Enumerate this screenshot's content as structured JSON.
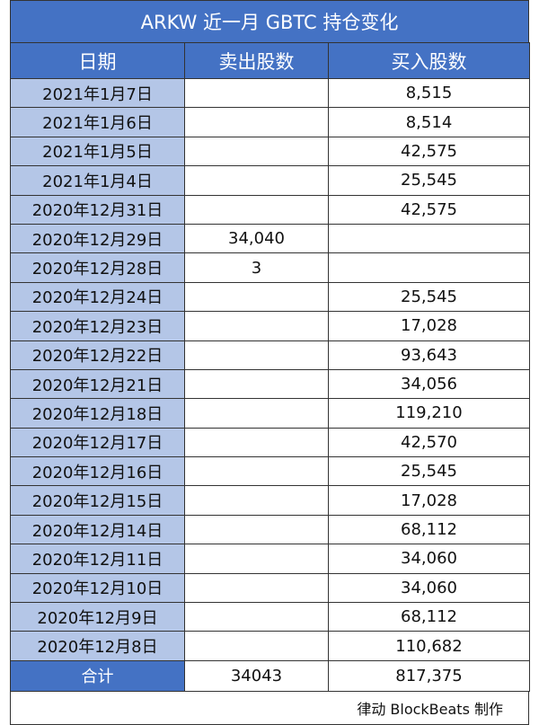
{
  "title": "ARKW 近一月 GBTC 持仓变化",
  "table": {
    "header": [
      "日期",
      "卖出股数",
      "买入股数"
    ],
    "rows": [
      [
        "2021年1月7日",
        null,
        "8,515"
      ],
      [
        "2021年1月6日",
        null,
        "8,514"
      ],
      [
        "2021年1月5日",
        null,
        "42,575"
      ],
      [
        "2021年1月4日",
        null,
        "25,545"
      ],
      [
        "2020年12月31日",
        null,
        "42,575"
      ],
      [
        "2020年12月29日",
        "34,040",
        null
      ],
      [
        "2020年12月28日",
        "3",
        null
      ],
      [
        "2020年12月24日",
        null,
        "25,545"
      ],
      [
        "2020年12月23日",
        null,
        "17,028"
      ],
      [
        "2020年12月22日",
        null,
        "93,643"
      ],
      [
        "2020年12月21日",
        null,
        "34,056"
      ],
      [
        "2020年12月18日",
        null,
        "119,210"
      ],
      [
        "2020年12月17日",
        null,
        "42,570"
      ],
      [
        "2020年12月16日",
        null,
        "25,545"
      ],
      [
        "2020年12月15日",
        null,
        "17,028"
      ],
      [
        "2020年12月14日",
        null,
        "68,112"
      ],
      [
        "2020年12月11日",
        null,
        "34,060"
      ],
      [
        "2020年12月10日",
        null,
        "34,060"
      ],
      [
        "2020年12月9日",
        null,
        "68,112"
      ],
      [
        "2020年12月8日",
        null,
        "110,682"
      ]
    ],
    "total": [
      "合计",
      "34043",
      "817,375"
    ]
  },
  "footer": "律动 BlockBeats 制作"
}
